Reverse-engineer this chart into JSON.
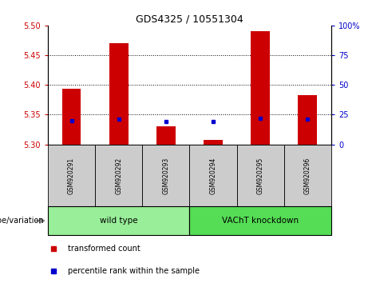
{
  "title": "GDS4325 / 10551304",
  "samples": [
    "GSM920291",
    "GSM920292",
    "GSM920293",
    "GSM920294",
    "GSM920295",
    "GSM920296"
  ],
  "transformed_count": [
    5.393,
    5.47,
    5.33,
    5.308,
    5.49,
    5.383
  ],
  "percentile_rank": [
    20,
    21,
    19,
    19,
    22,
    21
  ],
  "ylim_left": [
    5.3,
    5.5
  ],
  "ylim_right": [
    0,
    100
  ],
  "yticks_left": [
    5.3,
    5.35,
    5.4,
    5.45,
    5.5
  ],
  "yticks_right": [
    0,
    25,
    50,
    75,
    100
  ],
  "bar_color": "#cc0000",
  "dot_color": "#0000cc",
  "groups": [
    {
      "label": "wild type",
      "indices": [
        0,
        1,
        2
      ],
      "color": "#99ee99"
    },
    {
      "label": "VAChT knockdown",
      "indices": [
        3,
        4,
        5
      ],
      "color": "#55dd55"
    }
  ],
  "group_label_prefix": "genotype/variation",
  "legend_items": [
    {
      "label": "transformed count",
      "color": "#cc0000"
    },
    {
      "label": "percentile rank within the sample",
      "color": "#0000cc"
    }
  ],
  "grid_color": "black",
  "base_value": 5.3,
  "tick_label_color_left": "#cc0000",
  "tick_label_color_right": "#0000cc",
  "sample_area_color": "#cccccc",
  "bar_width": 0.4
}
